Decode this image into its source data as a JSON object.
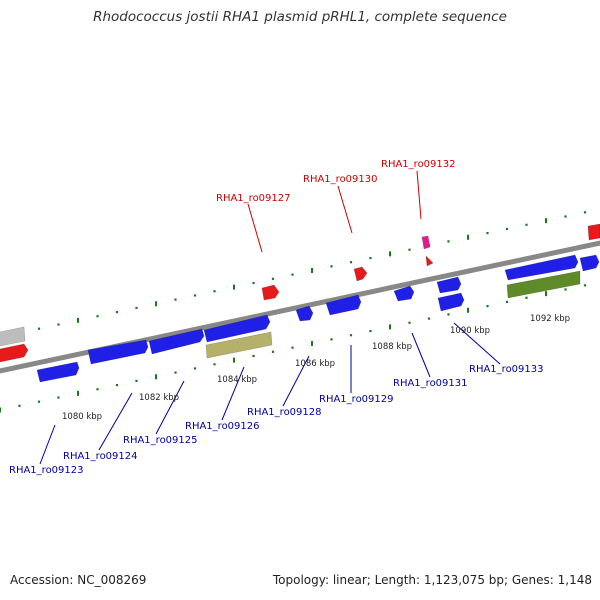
{
  "title": "Rhodococcus jostii RHA1 plasmid pRHL1, complete sequence",
  "accession": "Accession: NC_008269",
  "summary": "Topology: linear; Length: 1,123,075 bp; Genes: 1,148",
  "colors": {
    "forward_gene_label": "#cc0000",
    "reverse_gene_label": "#000099",
    "backbone": "#888888",
    "tick": "#1a7a1a",
    "cds": "#1f1fe6",
    "forward_cds": "#e61a1a",
    "khaki_feature": "#b5b06a",
    "olive_feature": "#5f8a28",
    "gray_feature": "#bdbdbd",
    "magenta_feature": "#e6198c"
  },
  "axis": {
    "unit": "kbp",
    "tick_labels": [
      "1080 kbp",
      "1082 kbp",
      "1084 kbp",
      "1086 kbp",
      "1088 kbp",
      "1090 kbp",
      "1092 kbp"
    ]
  },
  "genes": {
    "forward": [
      "RHA1_ro09127",
      "RHA1_ro09130",
      "RHA1_ro09132"
    ],
    "reverse": [
      "RHA1_ro09123",
      "RHA1_ro09124",
      "RHA1_ro09125",
      "RHA1_ro09126",
      "RHA1_ro09128",
      "RHA1_ro09129",
      "RHA1_ro09131",
      "RHA1_ro09133"
    ]
  }
}
